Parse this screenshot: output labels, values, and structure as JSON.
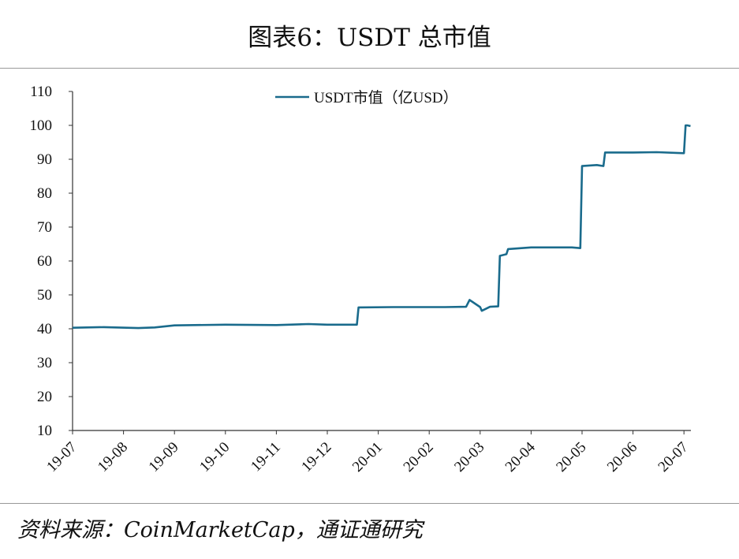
{
  "title": "图表6：USDT 总市值",
  "source": "资料来源：CoinMarketCap，通证通研究",
  "colors": {
    "series": "#1a6b8c",
    "axis": "#333333"
  },
  "chart_data": {
    "type": "line",
    "title": "图表6：USDT 总市值",
    "xlabel": "",
    "ylabel": "",
    "ylim": [
      10,
      110
    ],
    "yticks": [
      10,
      20,
      30,
      40,
      50,
      60,
      70,
      80,
      90,
      100,
      110
    ],
    "xlim": [
      "2019-07-01",
      "2020-07-08"
    ],
    "xticks": [
      "19-07",
      "19-08",
      "19-09",
      "19-10",
      "19-11",
      "19-12",
      "20-01",
      "20-02",
      "20-03",
      "20-04",
      "20-05",
      "20-06",
      "20-07"
    ],
    "grid": false,
    "legend": "top-left",
    "series": [
      {
        "name": "USDT市值（亿USD）",
        "x": [
          "2019-07-01",
          "2019-07-20",
          "2019-08-10",
          "2019-08-20",
          "2019-09-01",
          "2019-10-01",
          "2019-11-01",
          "2019-11-20",
          "2019-12-01",
          "2019-12-19",
          "2019-12-20",
          "2020-01-10",
          "2020-02-10",
          "2020-02-22",
          "2020-02-24",
          "2020-03-01",
          "2020-03-02",
          "2020-03-07",
          "2020-03-12",
          "2020-03-13",
          "2020-03-17",
          "2020-03-18",
          "2020-04-01",
          "2020-04-25",
          "2020-04-30",
          "2020-05-01",
          "2020-05-10",
          "2020-05-14",
          "2020-05-15",
          "2020-06-01",
          "2020-06-15",
          "2020-07-01",
          "2020-07-02",
          "2020-07-03",
          "2020-07-05"
        ],
        "values": [
          40.3,
          40.5,
          40.2,
          40.4,
          41.0,
          41.2,
          41.1,
          41.4,
          41.2,
          41.2,
          46.3,
          46.4,
          46.4,
          46.5,
          48.5,
          46.4,
          45.3,
          46.5,
          46.6,
          61.5,
          62.0,
          63.5,
          64.0,
          64.0,
          63.8,
          88.0,
          88.3,
          88.0,
          92.0,
          92.0,
          92.1,
          91.8,
          100.0,
          100.0,
          99.8
        ]
      }
    ]
  }
}
